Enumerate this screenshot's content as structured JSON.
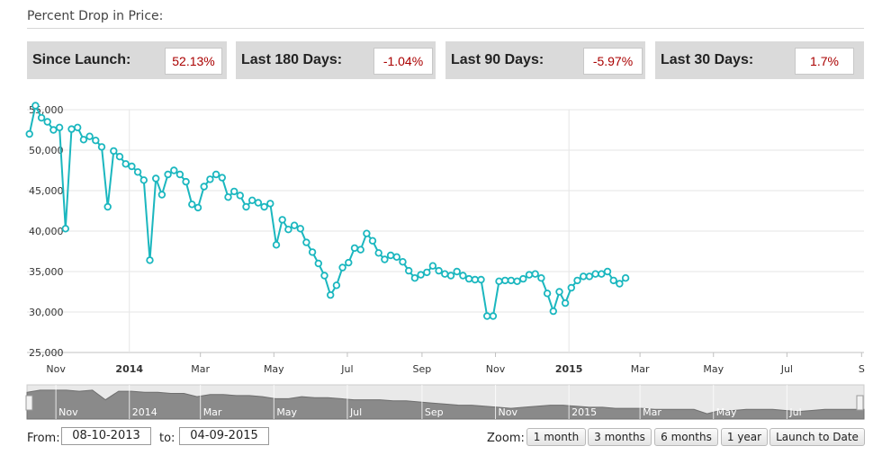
{
  "header": {
    "title": "Percent Drop in Price:"
  },
  "stats": [
    {
      "label": "Since Launch:",
      "value": "52.13%"
    },
    {
      "label": "Last 180 Days:",
      "value": "-1.04%"
    },
    {
      "label": "Last 90 Days:",
      "value": "-5.97%"
    },
    {
      "label": "Last 30 Days:",
      "value": "1.7%"
    }
  ],
  "controls": {
    "from_label": "From:",
    "from_value": "08-10-2013",
    "to_label": "to:",
    "to_value": "04-09-2015",
    "zoom_label": "Zoom:",
    "zoom_buttons": [
      "1 month",
      "3 months",
      "6 months",
      "1 year",
      "Launch to Date"
    ]
  },
  "colors": {
    "series": "#1bb7bf",
    "value_text": "#aa0000",
    "stat_bg": "#dadada"
  },
  "chart_data": {
    "type": "line",
    "ylim": [
      25000,
      55000
    ],
    "y_ticks": [
      {
        "value": 25000,
        "label": "25,000"
      },
      {
        "value": 30000,
        "label": "30,000"
      },
      {
        "value": 35000,
        "label": "35,000"
      },
      {
        "value": 40000,
        "label": "40,000"
      },
      {
        "value": 45000,
        "label": "45,000"
      },
      {
        "value": 50000,
        "label": "50,000"
      },
      {
        "value": 55000,
        "label": "55,000"
      }
    ],
    "x_range": [
      "2013-10-08",
      "2015-09-03"
    ],
    "x_ticks": [
      {
        "date": "2013-11-01",
        "label": "Nov",
        "bold": false
      },
      {
        "date": "2014-01-01",
        "label": "2014",
        "bold": true
      },
      {
        "date": "2014-03-01",
        "label": "Mar",
        "bold": false
      },
      {
        "date": "2014-05-01",
        "label": "May",
        "bold": false
      },
      {
        "date": "2014-07-01",
        "label": "Jul",
        "bold": false
      },
      {
        "date": "2014-09-01",
        "label": "Sep",
        "bold": false
      },
      {
        "date": "2014-11-01",
        "label": "Nov",
        "bold": false
      },
      {
        "date": "2015-01-01",
        "label": "2015",
        "bold": true
      },
      {
        "date": "2015-03-01",
        "label": "Mar",
        "bold": false
      },
      {
        "date": "2015-05-01",
        "label": "May",
        "bold": false
      },
      {
        "date": "2015-07-01",
        "label": "Jul",
        "bold": false
      },
      {
        "date": "2015-09-01",
        "label": "S",
        "bold": false
      }
    ],
    "navigator_ticks": [
      {
        "date": "2013-11-01",
        "label": "Nov"
      },
      {
        "date": "2014-01-01",
        "label": "2014"
      },
      {
        "date": "2014-03-01",
        "label": "Mar"
      },
      {
        "date": "2014-05-01",
        "label": "May"
      },
      {
        "date": "2014-07-01",
        "label": "Jul"
      },
      {
        "date": "2014-09-01",
        "label": "Sep"
      },
      {
        "date": "2014-11-01",
        "label": "Nov"
      },
      {
        "date": "2015-01-01",
        "label": "2015"
      },
      {
        "date": "2015-03-01",
        "label": "Mar"
      },
      {
        "date": "2015-05-01",
        "label": "May"
      },
      {
        "date": "2015-07-01",
        "label": "Jul"
      }
    ],
    "points": [
      [
        "2013-10-10",
        52000
      ],
      [
        "2013-10-15",
        55500
      ],
      [
        "2013-10-20",
        54000
      ],
      [
        "2013-10-25",
        53500
      ],
      [
        "2013-10-30",
        52500
      ],
      [
        "2013-11-04",
        52800
      ],
      [
        "2013-11-09",
        40300
      ],
      [
        "2013-11-14",
        52600
      ],
      [
        "2013-11-19",
        52800
      ],
      [
        "2013-11-24",
        51300
      ],
      [
        "2013-11-29",
        51700
      ],
      [
        "2013-12-04",
        51200
      ],
      [
        "2013-12-09",
        50400
      ],
      [
        "2013-12-14",
        43000
      ],
      [
        "2013-12-19",
        49900
      ],
      [
        "2013-12-24",
        49200
      ],
      [
        "2013-12-29",
        48300
      ],
      [
        "2014-01-03",
        48000
      ],
      [
        "2014-01-08",
        47300
      ],
      [
        "2014-01-13",
        46300
      ],
      [
        "2014-01-18",
        36400
      ],
      [
        "2014-01-23",
        46500
      ],
      [
        "2014-01-28",
        44500
      ],
      [
        "2014-02-02",
        47000
      ],
      [
        "2014-02-07",
        47500
      ],
      [
        "2014-02-12",
        47000
      ],
      [
        "2014-02-17",
        46100
      ],
      [
        "2014-02-22",
        43300
      ],
      [
        "2014-02-27",
        42900
      ],
      [
        "2014-03-04",
        45500
      ],
      [
        "2014-03-09",
        46400
      ],
      [
        "2014-03-14",
        47000
      ],
      [
        "2014-03-19",
        46600
      ],
      [
        "2014-03-24",
        44200
      ],
      [
        "2014-03-29",
        44900
      ],
      [
        "2014-04-03",
        44400
      ],
      [
        "2014-04-08",
        43000
      ],
      [
        "2014-04-13",
        43800
      ],
      [
        "2014-04-18",
        43500
      ],
      [
        "2014-04-23",
        43000
      ],
      [
        "2014-04-28",
        43400
      ],
      [
        "2014-05-03",
        38300
      ],
      [
        "2014-05-08",
        41400
      ],
      [
        "2014-05-13",
        40200
      ],
      [
        "2014-05-18",
        40700
      ],
      [
        "2014-05-23",
        40300
      ],
      [
        "2014-05-28",
        38600
      ],
      [
        "2014-06-02",
        37400
      ],
      [
        "2014-06-07",
        36000
      ],
      [
        "2014-06-12",
        34500
      ],
      [
        "2014-06-17",
        32100
      ],
      [
        "2014-06-22",
        33300
      ],
      [
        "2014-06-27",
        35500
      ],
      [
        "2014-07-02",
        36100
      ],
      [
        "2014-07-07",
        37900
      ],
      [
        "2014-07-12",
        37700
      ],
      [
        "2014-07-17",
        39700
      ],
      [
        "2014-07-22",
        38800
      ],
      [
        "2014-07-27",
        37300
      ],
      [
        "2014-08-01",
        36500
      ],
      [
        "2014-08-06",
        37000
      ],
      [
        "2014-08-11",
        36800
      ],
      [
        "2014-08-16",
        36200
      ],
      [
        "2014-08-21",
        35100
      ],
      [
        "2014-08-26",
        34200
      ],
      [
        "2014-08-31",
        34600
      ],
      [
        "2014-09-05",
        34900
      ],
      [
        "2014-09-10",
        35700
      ],
      [
        "2014-09-15",
        35100
      ],
      [
        "2014-09-20",
        34700
      ],
      [
        "2014-09-25",
        34500
      ],
      [
        "2014-09-30",
        35000
      ],
      [
        "2014-10-05",
        34500
      ],
      [
        "2014-10-10",
        34100
      ],
      [
        "2014-10-15",
        34000
      ],
      [
        "2014-10-20",
        34000
      ],
      [
        "2014-10-25",
        29500
      ],
      [
        "2014-10-30",
        29500
      ],
      [
        "2014-11-04",
        33800
      ],
      [
        "2014-11-09",
        33900
      ],
      [
        "2014-11-14",
        33900
      ],
      [
        "2014-11-19",
        33800
      ],
      [
        "2014-11-24",
        34100
      ],
      [
        "2014-11-29",
        34600
      ],
      [
        "2014-12-04",
        34700
      ],
      [
        "2014-12-09",
        34200
      ],
      [
        "2014-12-14",
        32300
      ],
      [
        "2014-12-19",
        30100
      ],
      [
        "2014-12-24",
        32500
      ],
      [
        "2014-12-29",
        31100
      ],
      [
        "2015-01-03",
        33000
      ],
      [
        "2015-01-08",
        33900
      ],
      [
        "2015-01-13",
        34400
      ],
      [
        "2015-01-18",
        34400
      ],
      [
        "2015-01-23",
        34700
      ],
      [
        "2015-01-28",
        34700
      ],
      [
        "2015-02-02",
        35000
      ],
      [
        "2015-02-07",
        33900
      ],
      [
        "2015-02-12",
        33500
      ],
      [
        "2015-02-17",
        34200
      ]
    ],
    "navigator_values": [
      50,
      52,
      52,
      52,
      51,
      52,
      43,
      51,
      51,
      50,
      50,
      49,
      49,
      46,
      48,
      48,
      47,
      47,
      46,
      44,
      44,
      46,
      45,
      45,
      44,
      43,
      43,
      43,
      42,
      42,
      41,
      40,
      39,
      38,
      38,
      37,
      36,
      35,
      36,
      37,
      38,
      38,
      37,
      36,
      36,
      35,
      35,
      35,
      34,
      34,
      34,
      34,
      30,
      33,
      33,
      34,
      34,
      34,
      33,
      32,
      33,
      34,
      34,
      34,
      34
    ]
  }
}
